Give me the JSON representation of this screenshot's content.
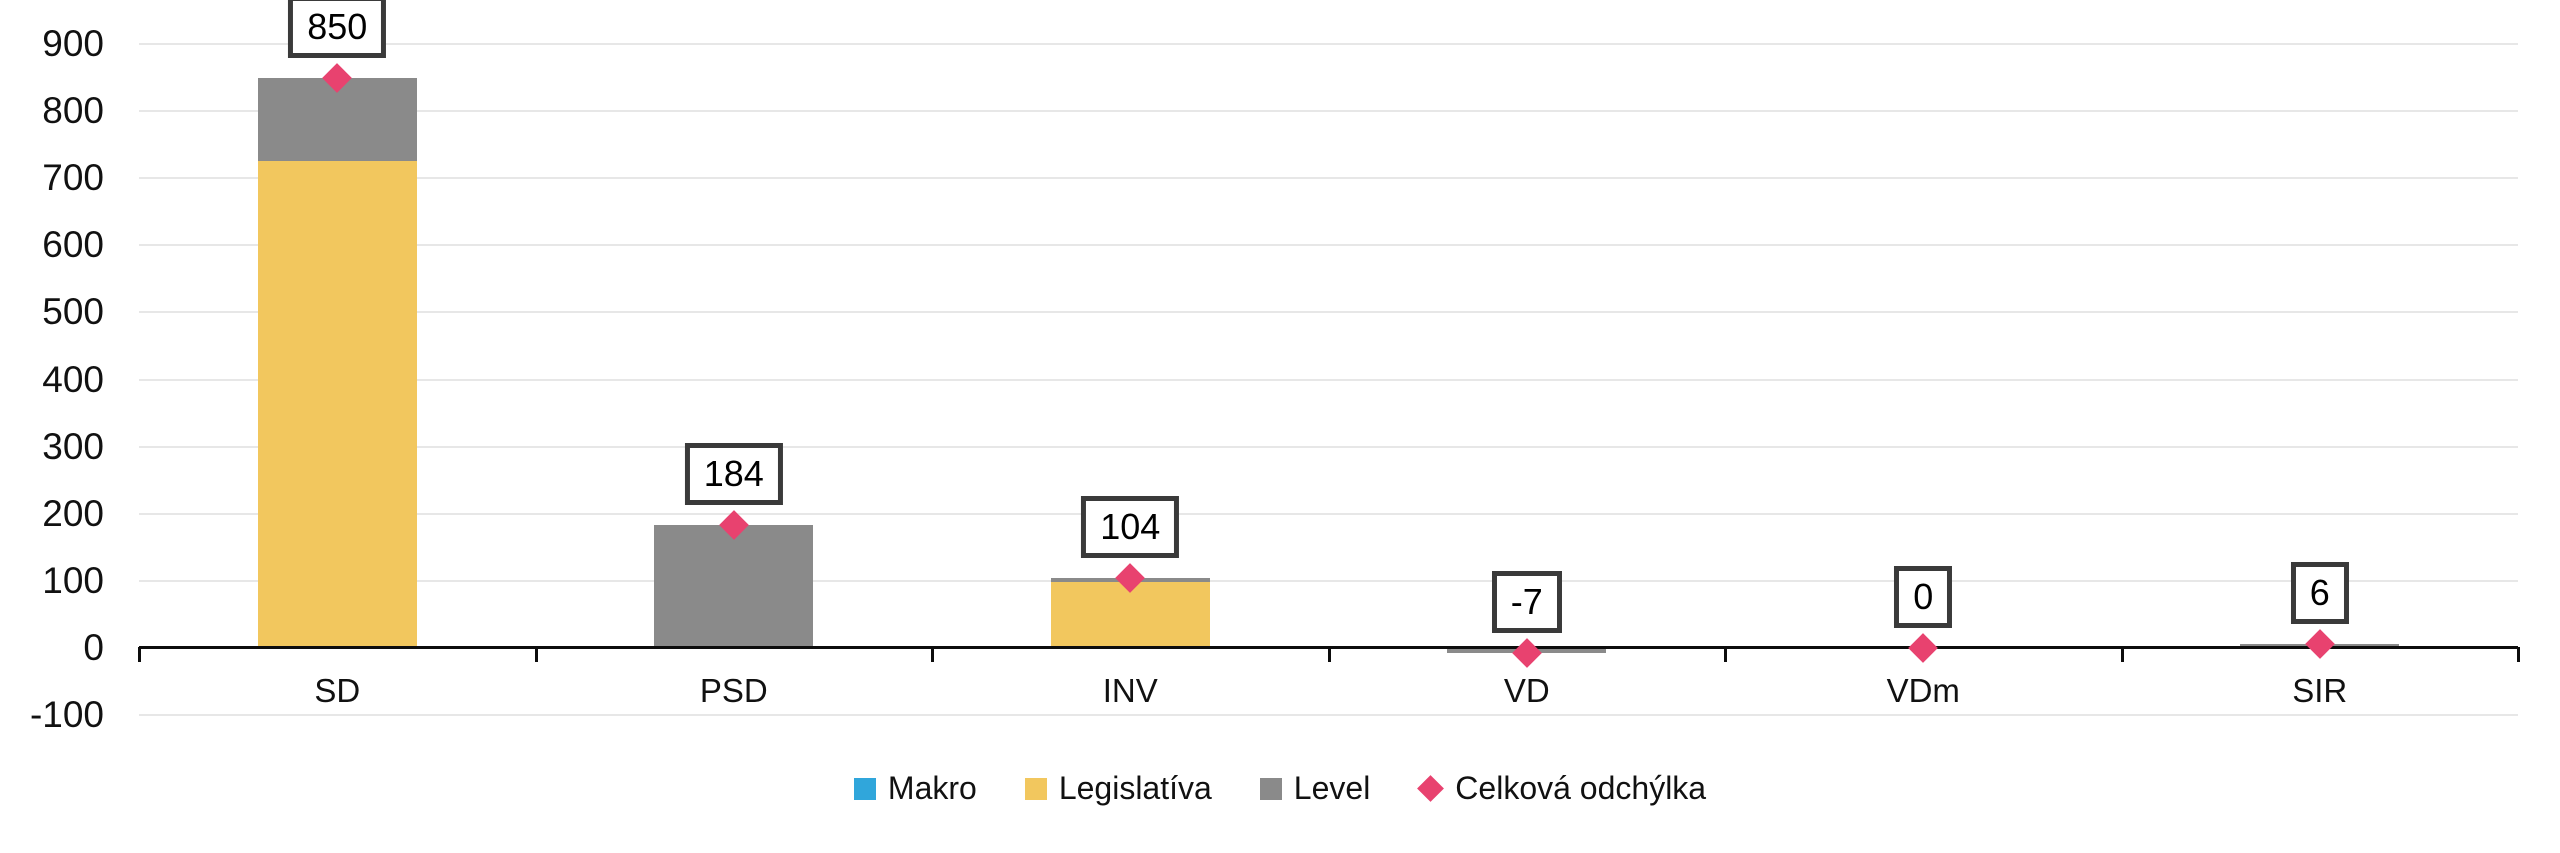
{
  "chart_data": {
    "type": "bar",
    "stacked": true,
    "title": "",
    "xlabel": "",
    "ylabel": "",
    "categories": [
      "SD",
      "PSD",
      "INV",
      "VD",
      "VDm",
      "SIR"
    ],
    "series": [
      {
        "name": "Makro",
        "color": "#30a6db",
        "values": [
          0,
          0,
          0,
          0,
          0,
          0
        ]
      },
      {
        "name": "Legislatíva",
        "color": "#f2c75e",
        "values": [
          725,
          0,
          98,
          0,
          0,
          0
        ]
      },
      {
        "name": "Level",
        "color": "#8a8a8a",
        "values": [
          125,
          184,
          6,
          -7,
          0,
          6
        ]
      }
    ],
    "marker_series": {
      "name": "Celková odchýlka",
      "color": "#e8426f",
      "marker": "diamond",
      "values": [
        850,
        184,
        104,
        -7,
        0,
        6
      ]
    },
    "data_labels": [
      "850",
      "184",
      "104",
      "-7",
      "0",
      "6"
    ],
    "y_ticks": [
      900,
      800,
      700,
      600,
      500,
      400,
      300,
      200,
      100,
      0,
      -100
    ],
    "y_tick_labels": [
      "900",
      "800",
      "700",
      "600",
      "500",
      "400",
      "300",
      "200",
      "100",
      "0",
      "-100"
    ],
    "ylim": [
      -100,
      950
    ],
    "grid": true,
    "legend_position": "bottom",
    "colors": {
      "axis": "#0d0d0d",
      "gridline": "#e7e7e7",
      "label_box_border": "#3a3a3a",
      "background": "#ffffff"
    }
  },
  "legend": {
    "items": [
      {
        "label": "Makro",
        "shape": "square",
        "color": "#30a6db"
      },
      {
        "label": "Legislatíva",
        "shape": "square",
        "color": "#f2c75e"
      },
      {
        "label": "Level",
        "shape": "square",
        "color": "#8a8a8a"
      },
      {
        "label": "Celková odchýlka",
        "shape": "diamond",
        "color": "#e8426f"
      }
    ]
  }
}
